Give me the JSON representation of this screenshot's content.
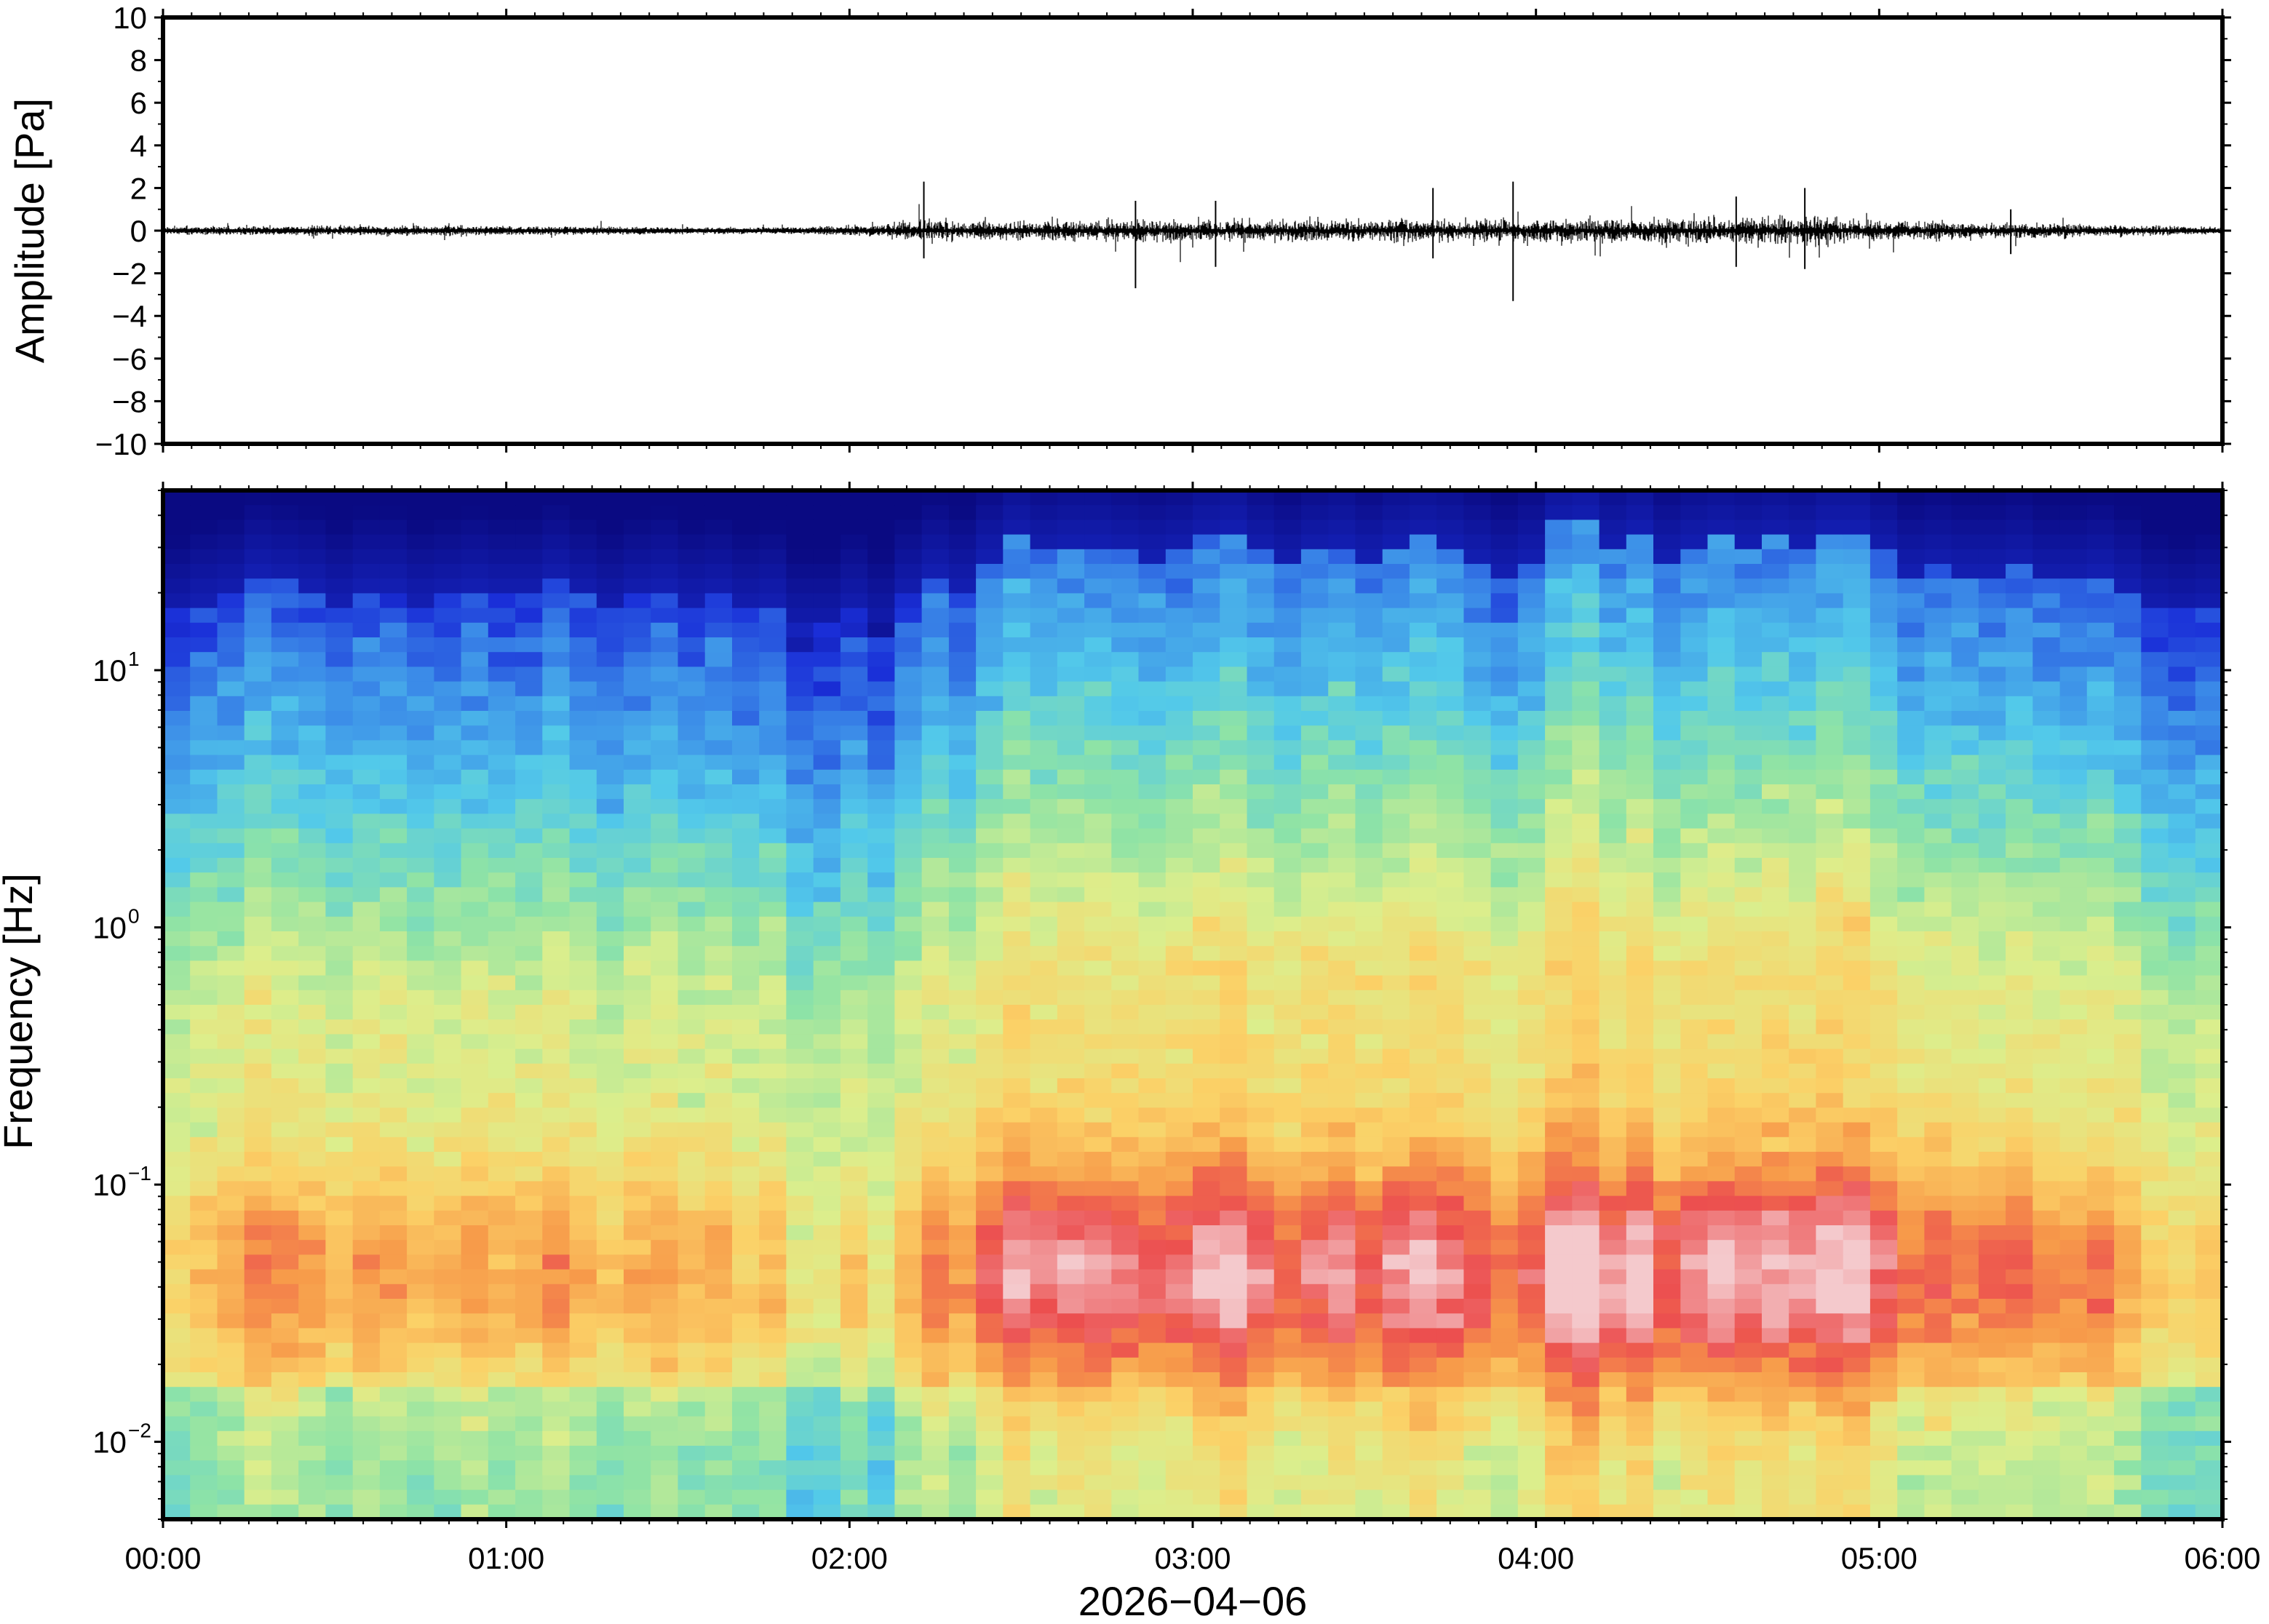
{
  "chart_data": [
    {
      "type": "line",
      "name": "waveform",
      "ylabel": "Amplitude [Pa]",
      "ylim": [
        -10,
        10
      ],
      "y_ticks": [
        "10",
        "8",
        "6",
        "4",
        "2",
        "0",
        "−2",
        "−4",
        "−6",
        "−8",
        "−10"
      ],
      "y_tick_values": [
        10,
        8,
        6,
        4,
        2,
        0,
        -2,
        -4,
        -6,
        -8,
        -10
      ],
      "xlim": [
        "00:00",
        "06:00"
      ],
      "grid": false,
      "line_color": "#000000",
      "envelope": {
        "time_hours": [
          0,
          0.3,
          0.5,
          1.0,
          1.5,
          1.8,
          2.0,
          2.2,
          2.3,
          2.5,
          2.7,
          2.8,
          3.0,
          3.2,
          3.5,
          3.8,
          3.9,
          4.0,
          4.2,
          4.5,
          4.8,
          5.0,
          5.4,
          6.0
        ],
        "amplitude_pa": [
          0.25,
          0.3,
          0.35,
          0.3,
          0.2,
          0.2,
          0.35,
          0.8,
          0.8,
          0.7,
          0.8,
          0.8,
          0.9,
          0.9,
          0.9,
          0.8,
          1.0,
          0.9,
          1.0,
          1.1,
          1.2,
          0.7,
          0.6,
          0.2
        ]
      },
      "spikes": [
        {
          "time": "02:13",
          "max_pa": 2.3,
          "min_pa": -1.3
        },
        {
          "time": "02:50",
          "max_pa": 1.4,
          "min_pa": -2.7
        },
        {
          "time": "03:04",
          "max_pa": 1.4,
          "min_pa": -1.7
        },
        {
          "time": "03:42",
          "max_pa": 2.0,
          "min_pa": -1.3
        },
        {
          "time": "03:56",
          "max_pa": 2.3,
          "min_pa": -3.3
        },
        {
          "time": "04:35",
          "max_pa": 1.6,
          "min_pa": -1.7
        },
        {
          "time": "04:47",
          "max_pa": 2.0,
          "min_pa": -1.8
        },
        {
          "time": "05:23",
          "max_pa": 1.0,
          "min_pa": -1.1
        }
      ]
    },
    {
      "type": "heatmap",
      "name": "spectrogram",
      "ylabel": "Frequency [Hz]",
      "y_scale": "log",
      "ylim_hz": [
        0.005,
        50
      ],
      "y_ticks": [
        {
          "value": 10,
          "base": "10",
          "exp": "1"
        },
        {
          "value": 1,
          "base": "10",
          "exp": "0"
        },
        {
          "value": 0.1,
          "base": "10",
          "exp": "−1"
        },
        {
          "value": 0.01,
          "base": "10",
          "exp": "−2"
        }
      ],
      "x_ticks": [
        "00:00",
        "01:00",
        "02:00",
        "03:00",
        "04:00",
        "05:00",
        "06:00"
      ],
      "x_tick_hours": [
        0,
        1,
        2,
        3,
        4,
        5,
        6
      ],
      "xlabel": "2026−04−06",
      "colormap": "rainbow",
      "colormap_stops": [
        "#0a0a82",
        "#1a2fd8",
        "#3b8be8",
        "#52c9ea",
        "#8ee3a6",
        "#dcee8c",
        "#fbd167",
        "#f79b4a",
        "#ec4f4f",
        "#f4c9cc"
      ],
      "column_activity": [
        0.3,
        0.4,
        0.45,
        0.6,
        0.55,
        0.5,
        0.4,
        0.5,
        0.5,
        0.4,
        0.45,
        0.5,
        0.45,
        0.45,
        0.55,
        0.45,
        0.35,
        0.45,
        0.5,
        0.4,
        0.45,
        0.35,
        0.4,
        0.2,
        0.2,
        0.35,
        0.2,
        0.45,
        0.6,
        0.5,
        0.7,
        0.85,
        0.75,
        0.8,
        0.8,
        0.75,
        0.7,
        0.75,
        0.85,
        0.9,
        0.75,
        0.65,
        0.75,
        0.8,
        0.7,
        0.8,
        0.85,
        0.8,
        0.7,
        0.6,
        0.7,
        0.95,
        1.0,
        0.8,
        0.9,
        0.7,
        0.8,
        0.85,
        0.8,
        0.85,
        0.8,
        0.9,
        0.9,
        0.75,
        0.6,
        0.65,
        0.6,
        0.6,
        0.65,
        0.55,
        0.55,
        0.6,
        0.5,
        0.35,
        0.3,
        0.35
      ]
    }
  ]
}
